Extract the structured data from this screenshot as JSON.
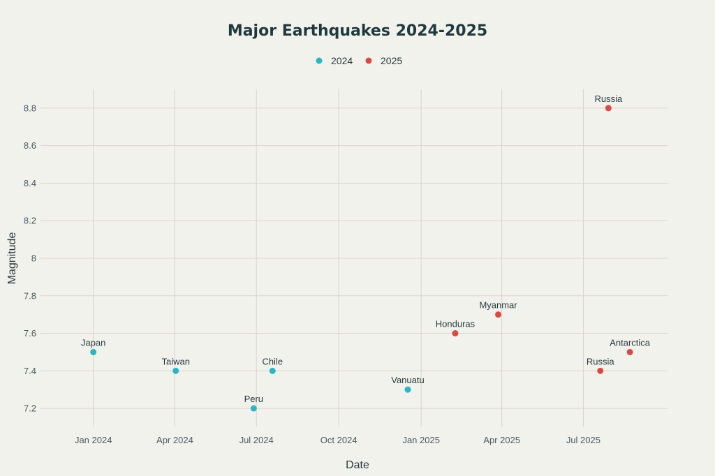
{
  "chart_data": {
    "type": "scatter",
    "title": "Major Earthquakes 2024-2025",
    "xlabel": "Date",
    "ylabel": "Magnitude",
    "x_ticks": [
      {
        "date": "2024-01-01",
        "label": "Jan 2024"
      },
      {
        "date": "2024-04-01",
        "label": "Apr 2024"
      },
      {
        "date": "2024-07-01",
        "label": "Jul 2024"
      },
      {
        "date": "2024-10-01",
        "label": "Oct 2024"
      },
      {
        "date": "2025-01-01",
        "label": "Jan 2025"
      },
      {
        "date": "2025-04-01",
        "label": "Apr 2025"
      },
      {
        "date": "2025-07-01",
        "label": "Jul 2025"
      }
    ],
    "xlim": [
      "2023-11-03",
      "2025-10-03"
    ],
    "ylim": [
      7.1,
      8.9
    ],
    "y_ticks": [
      "7.2",
      "7.4",
      "7.6",
      "7.8",
      "8",
      "8.2",
      "8.4",
      "8.6",
      "8.8"
    ],
    "grid": true,
    "legend_position": "top-center",
    "series": [
      {
        "name": "2024",
        "color": "#2bb5c8",
        "points": [
          {
            "x": "2024-01-01",
            "y": 7.5,
            "label": "Japan"
          },
          {
            "x": "2024-04-02",
            "y": 7.4,
            "label": "Taiwan"
          },
          {
            "x": "2024-06-28",
            "y": 7.2,
            "label": "Peru"
          },
          {
            "x": "2024-07-19",
            "y": 7.4,
            "label": "Chile"
          },
          {
            "x": "2024-12-17",
            "y": 7.3,
            "label": "Vanuatu"
          }
        ]
      },
      {
        "name": "2025",
        "color": "#d94a46",
        "points": [
          {
            "x": "2025-02-08",
            "y": 7.6,
            "label": "Honduras"
          },
          {
            "x": "2025-03-28",
            "y": 7.7,
            "label": "Myanmar"
          },
          {
            "x": "2025-07-20",
            "y": 7.4,
            "label": "Russia"
          },
          {
            "x": "2025-07-29",
            "y": 8.8,
            "label": "Russia"
          },
          {
            "x": "2025-08-22",
            "y": 7.5,
            "label": "Antarctica"
          }
        ]
      }
    ]
  }
}
